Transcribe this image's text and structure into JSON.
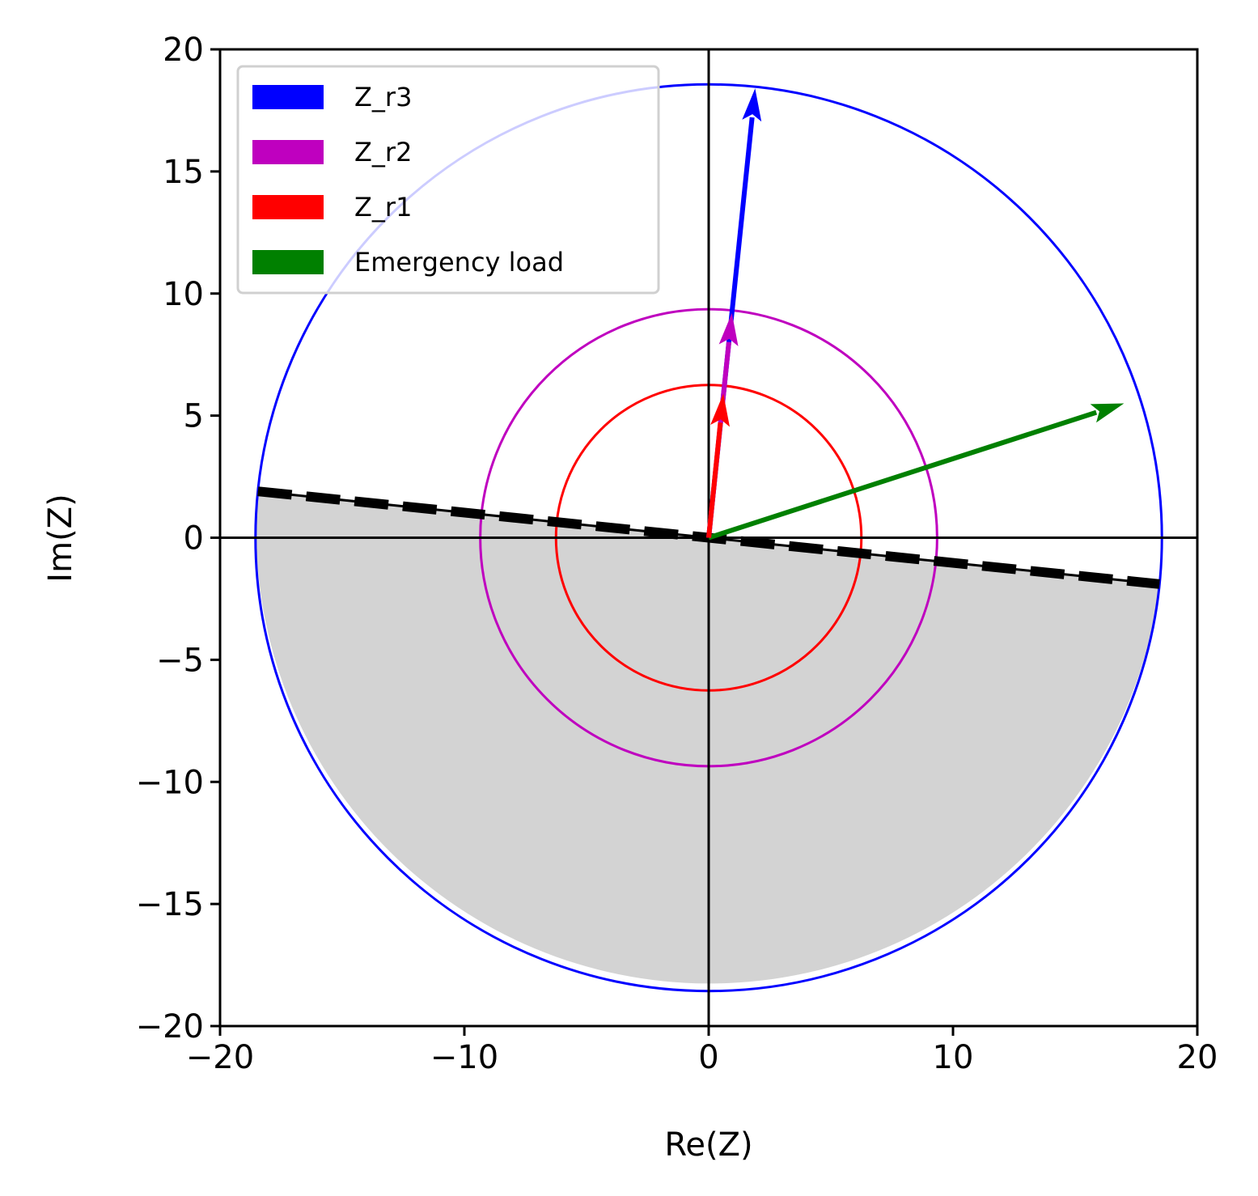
{
  "chart_data": {
    "type": "scatter",
    "subtype": "impedance-plane",
    "xlabel": "Re(Z)",
    "ylabel": "Im(Z)",
    "xlim": [
      -20,
      20
    ],
    "ylim": [
      -20,
      20
    ],
    "xticks": [
      -20,
      -10,
      0,
      10,
      20
    ],
    "yticks": [
      -20,
      -15,
      -10,
      -5,
      0,
      5,
      10,
      15,
      20
    ],
    "xtick_labels": [
      "−20",
      "−10",
      "0",
      "10",
      "20"
    ],
    "ytick_labels": [
      "−20",
      "−15",
      "−10",
      "−5",
      "0",
      "5",
      "10",
      "15",
      "20"
    ],
    "grid": false,
    "legend_position": "upper-left",
    "reference_axes": {
      "x0": 0,
      "y0": 0
    },
    "zones": [
      {
        "name": "Z_r3",
        "radius": 18.55,
        "color": "#0000ff"
      },
      {
        "name": "Z_r2",
        "radius": 9.35,
        "color": "#bf00bf"
      },
      {
        "name": "Z_r1",
        "radius": 6.25,
        "color": "#ff0000"
      }
    ],
    "series": [
      {
        "name": "Z_r3",
        "color": "#0000ff",
        "x0": 0,
        "y0": 0,
        "x1": 1.9,
        "y1": 18.4
      },
      {
        "name": "Z_r2",
        "color": "#bf00bf",
        "x0": 0,
        "y0": 0,
        "x1": 0.95,
        "y1": 9.2
      },
      {
        "name": "Z_r1",
        "color": "#ff0000",
        "x0": 0,
        "y0": 0,
        "x1": 0.6,
        "y1": 5.9
      },
      {
        "name": "Emergency load",
        "color": "#008000",
        "x0": 0,
        "y0": 0,
        "x1": 17.0,
        "y1": 5.5
      }
    ],
    "directional_line": {
      "x_start": -18.45,
      "y_start": 1.9,
      "x_end": 18.45,
      "y_end": -1.9,
      "style": "dashed"
    },
    "shaded_region": {
      "description": "below directional line inside Z_r3",
      "color": "#d3d3d3"
    }
  }
}
